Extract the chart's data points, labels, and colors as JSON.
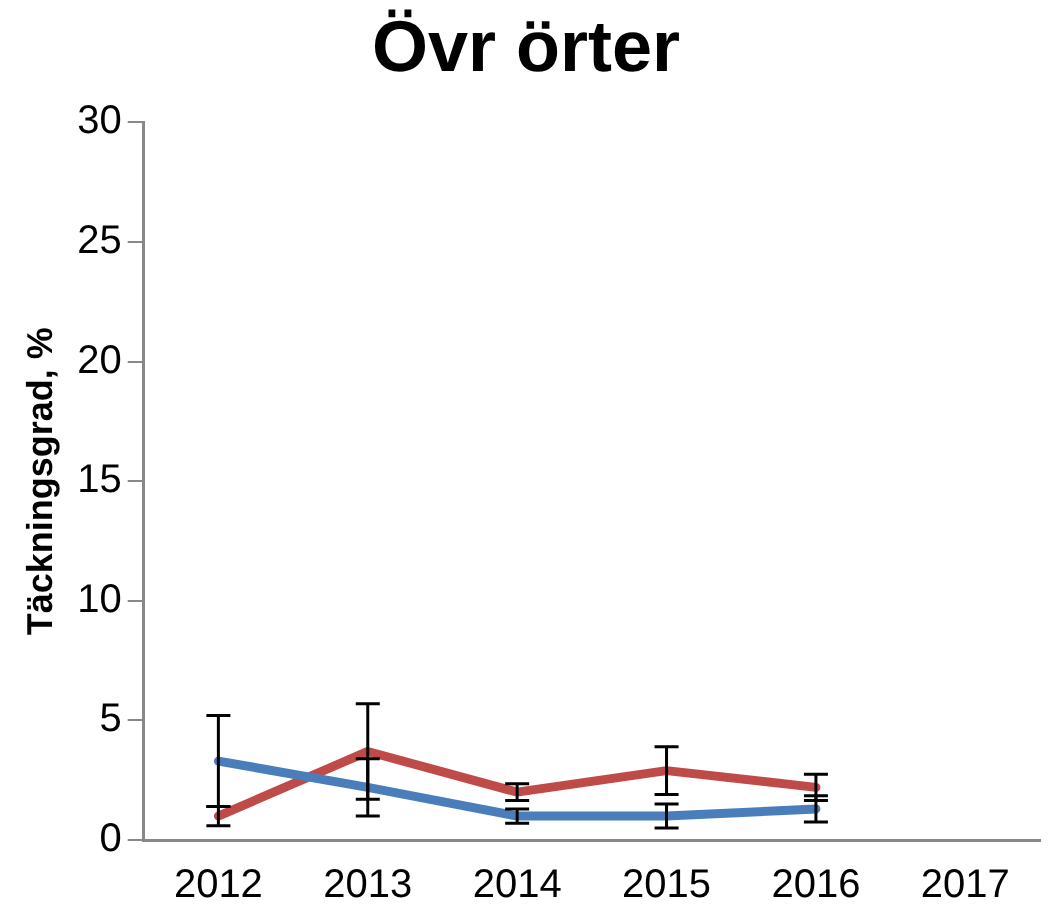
{
  "chart_data": {
    "type": "line",
    "title": "Övr örter",
    "ylabel": "Täckningsgrad, %",
    "categories": [
      "2012",
      "2013",
      "2014",
      "2015",
      "2016",
      "2017"
    ],
    "series": [
      {
        "color": "#4a7ebb",
        "values": [
          3.3,
          2.2,
          1.0,
          1.0,
          1.3,
          null
        ],
        "errors": [
          1.9,
          1.2,
          0.3,
          0.5,
          0.55,
          null
        ]
      },
      {
        "color": "#be4b48",
        "values": [
          1.0,
          3.7,
          2.0,
          2.9,
          2.2,
          null
        ],
        "errors": [
          0.4,
          2.0,
          0.35,
          1.0,
          0.55,
          null
        ]
      }
    ],
    "ylim": [
      0,
      30
    ],
    "yticks": [
      0,
      5,
      10,
      15,
      20,
      25,
      30
    ],
    "grid": false,
    "legend": false,
    "line_style": "solid"
  }
}
